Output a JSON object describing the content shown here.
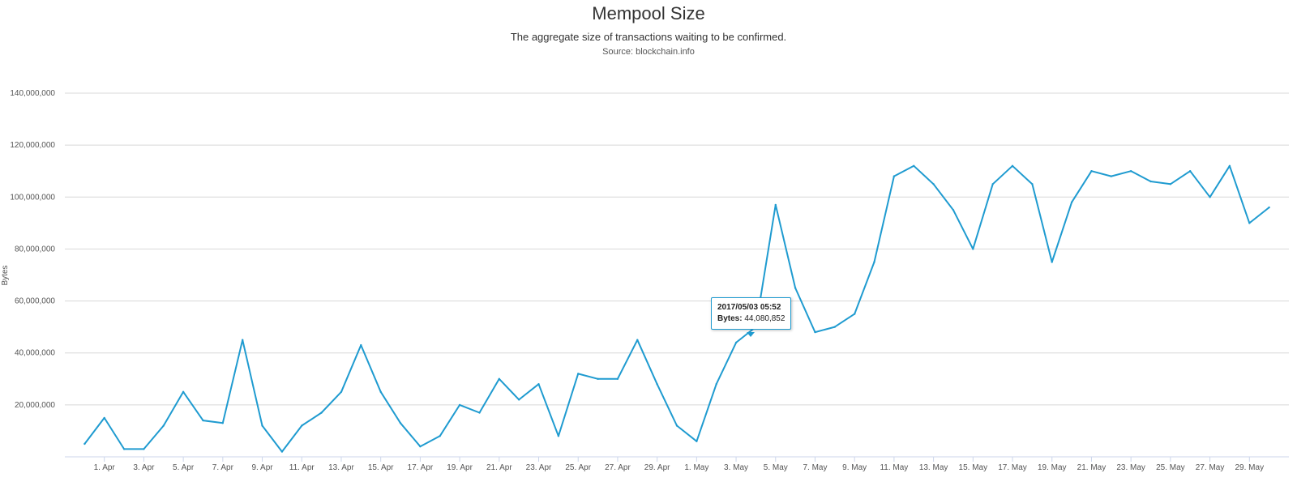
{
  "header": {
    "title": "Mempool Size",
    "subtitle": "The aggregate size of transactions waiting to be confirmed.",
    "source": "Source: blockchain.info"
  },
  "tooltip": {
    "date": "2017/05/03 05:52",
    "series_label": "Bytes",
    "value": "44,080,852"
  },
  "colors": {
    "line": "#1f9bd0",
    "grid": "#d8d8d8",
    "axis": "#ccd6eb"
  },
  "chart_data": {
    "type": "line",
    "title": "Mempool Size",
    "subtitle": "The aggregate size of transactions waiting to be confirmed.",
    "ylabel": "Bytes",
    "xlabel": "",
    "ylim": [
      0,
      140000000
    ],
    "yticks": [
      20000000,
      40000000,
      60000000,
      80000000,
      100000000,
      120000000,
      140000000
    ],
    "ytick_labels": [
      "20,000,000",
      "40,000,000",
      "60,000,000",
      "80,000,000",
      "100,000,000",
      "120,000,000",
      "140,000,000"
    ],
    "xlim": [
      "2017-03-30",
      "2017-05-31"
    ],
    "xtick_labels": [
      "1. Apr",
      "3. Apr",
      "5. Apr",
      "7. Apr",
      "9. Apr",
      "11. Apr",
      "13. Apr",
      "15. Apr",
      "17. Apr",
      "19. Apr",
      "21. Apr",
      "23. Apr",
      "25. Apr",
      "27. Apr",
      "29. Apr",
      "1. May",
      "3. May",
      "5. May",
      "7. May",
      "9. May",
      "11. May",
      "13. May",
      "15. May",
      "17. May",
      "19. May",
      "21. May",
      "23. May",
      "25. May",
      "27. May",
      "29. May"
    ],
    "grid": true,
    "legend": false,
    "series": [
      {
        "x": [
          "2017-03-31",
          "2017-04-01",
          "2017-04-02",
          "2017-04-03",
          "2017-04-04",
          "2017-04-05",
          "2017-04-06",
          "2017-04-07",
          "2017-04-08",
          "2017-04-09",
          "2017-04-10",
          "2017-04-11",
          "2017-04-12",
          "2017-04-13",
          "2017-04-14",
          "2017-04-15",
          "2017-04-16",
          "2017-04-17",
          "2017-04-18",
          "2017-04-19",
          "2017-04-20",
          "2017-04-21",
          "2017-04-22",
          "2017-04-23",
          "2017-04-24",
          "2017-04-25",
          "2017-04-26",
          "2017-04-27",
          "2017-04-28",
          "2017-04-29",
          "2017-04-30",
          "2017-05-01",
          "2017-05-02",
          "2017-05-03",
          "2017-05-04",
          "2017-05-05",
          "2017-05-06",
          "2017-05-07",
          "2017-05-08",
          "2017-05-09",
          "2017-05-10",
          "2017-05-11",
          "2017-05-12",
          "2017-05-13",
          "2017-05-14",
          "2017-05-15",
          "2017-05-16",
          "2017-05-17",
          "2017-05-18",
          "2017-05-19",
          "2017-05-20",
          "2017-05-21",
          "2017-05-22",
          "2017-05-23",
          "2017-05-24",
          "2017-05-25",
          "2017-05-26",
          "2017-05-27",
          "2017-05-28",
          "2017-05-29",
          "2017-05-30"
        ],
        "y": [
          5000000,
          15000000,
          3000000,
          3000000,
          12000000,
          25000000,
          14000000,
          13000000,
          45000000,
          12000000,
          2000000,
          12000000,
          17000000,
          25000000,
          43000000,
          25000000,
          13000000,
          4000000,
          8000000,
          20000000,
          17000000,
          30000000,
          22000000,
          28000000,
          8000000,
          32000000,
          30000000,
          30000000,
          45000000,
          28000000,
          12000000,
          6000000,
          28000000,
          44000000,
          50000000,
          97000000,
          65000000,
          48000000,
          50000000,
          55000000,
          75000000,
          108000000,
          112000000,
          105000000,
          95000000,
          80000000,
          105000000,
          112000000,
          105000000,
          75000000,
          98000000,
          110000000,
          108000000,
          110000000,
          106000000,
          105000000,
          110000000,
          100000000,
          112000000,
          90000000,
          96000000
        ]
      }
    ]
  }
}
